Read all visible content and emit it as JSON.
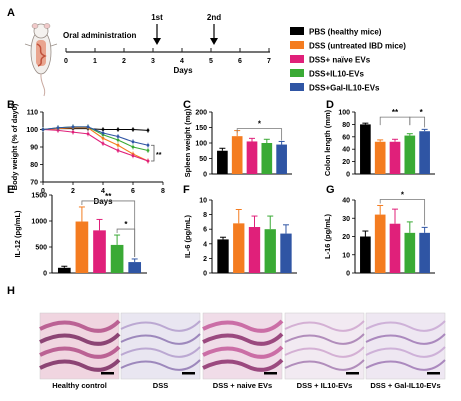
{
  "colors": {
    "pbs": "#000000",
    "dss": "#f47c20",
    "naive": "#e0207a",
    "il10": "#3aaa35",
    "gal": "#2f55a4"
  },
  "panelA": {
    "letter": "A",
    "oral": "Oral administration",
    "first": "1st",
    "second": "2nd",
    "days_label": "Days",
    "ticks": [
      "0",
      "1",
      "2",
      "3",
      "4",
      "5",
      "6",
      "7"
    ]
  },
  "legend": [
    {
      "key": "pbs",
      "label": "PBS (healthy mice)"
    },
    {
      "key": "dss",
      "label": "DSS (untreated IBD mice)"
    },
    {
      "key": "naive",
      "label": "DSS+ naïve EVs"
    },
    {
      "key": "il10",
      "label": "DSS+IL10-EVs"
    },
    {
      "key": "gal",
      "label": "DSS+Gal-IL10-EVs"
    }
  ],
  "panel_letters": {
    "B": "B",
    "C": "C",
    "D": "D",
    "E": "E",
    "F": "F",
    "G": "G",
    "H": "H"
  },
  "chart_data": [
    {
      "id": "B",
      "type": "line",
      "xlabel": "Days",
      "ylabel": "Body weight (% of day0)",
      "xlim": [
        0,
        8
      ],
      "ylim": [
        70,
        110
      ],
      "xticks": [
        "0",
        "2",
        "4",
        "6",
        "8"
      ],
      "yticks": [
        "70",
        "80",
        "90",
        "100",
        "110"
      ],
      "x": [
        0,
        1,
        2,
        3,
        4,
        5,
        6,
        7
      ],
      "series": [
        {
          "key": "pbs",
          "values": [
            100,
            100.5,
            100.5,
            100.5,
            100,
            100,
            100,
            99.5
          ]
        },
        {
          "key": "dss",
          "values": [
            100,
            100.5,
            101,
            101,
            95,
            91,
            86,
            82
          ]
        },
        {
          "key": "naive",
          "values": [
            100,
            99.5,
            98.5,
            97.5,
            92,
            88,
            85,
            82
          ]
        },
        {
          "key": "il10",
          "values": [
            100,
            101,
            101.5,
            101.5,
            97,
            94,
            90,
            88
          ]
        },
        {
          "key": "gal",
          "values": [
            100,
            101,
            101.5,
            101.5,
            98,
            96,
            93,
            91
          ]
        }
      ],
      "annotation": "**"
    },
    {
      "id": "C",
      "type": "bar",
      "ylabel": "Spleen weight (mg)",
      "ylim": [
        0,
        200
      ],
      "yticks": [
        "0",
        "50",
        "100",
        "150",
        "200"
      ],
      "categories": [
        "pbs",
        "dss",
        "naive",
        "il10",
        "gal"
      ],
      "values": [
        75,
        122,
        105,
        100,
        95
      ],
      "errors": [
        8,
        18,
        10,
        12,
        10
      ],
      "annotation": "*"
    },
    {
      "id": "D",
      "type": "bar",
      "ylabel": "Colon length (mm)",
      "ylim": [
        0,
        100
      ],
      "yticks": [
        "0",
        "20",
        "40",
        "60",
        "80",
        "100"
      ],
      "categories": [
        "pbs",
        "dss",
        "naive",
        "il10",
        "gal"
      ],
      "values": [
        80,
        52,
        52,
        62,
        69
      ],
      "errors": [
        2,
        3,
        4,
        3,
        3
      ],
      "annotation": [
        "**",
        "*"
      ]
    },
    {
      "id": "E",
      "type": "bar",
      "ylabel": "IL-12 (pg/mL)",
      "ylim": [
        0,
        1500
      ],
      "yticks": [
        "0",
        "500",
        "1000",
        "1500"
      ],
      "categories": [
        "pbs",
        "dss",
        "naive",
        "il10",
        "gal"
      ],
      "values": [
        100,
        990,
        820,
        540,
        210
      ],
      "errors": [
        30,
        280,
        210,
        190,
        60
      ],
      "annotation": [
        "**",
        "*"
      ]
    },
    {
      "id": "F",
      "type": "bar",
      "ylabel": "IL-6  (pg/mL)",
      "ylim": [
        0,
        10
      ],
      "yticks": [
        "0",
        "2",
        "4",
        "6",
        "8",
        "10"
      ],
      "categories": [
        "pbs",
        "dss",
        "naive",
        "il10",
        "gal"
      ],
      "values": [
        4.6,
        6.8,
        6.3,
        6.0,
        5.4
      ],
      "errors": [
        0.3,
        1.9,
        1.5,
        1.8,
        1.2
      ]
    },
    {
      "id": "G",
      "type": "bar",
      "ylabel": "L-16 (pg/mL)",
      "ylim": [
        0,
        40
      ],
      "yticks": [
        "0",
        "10",
        "20",
        "30",
        "40"
      ],
      "categories": [
        "pbs",
        "dss",
        "naive",
        "il10",
        "gal"
      ],
      "values": [
        20,
        32,
        27,
        22,
        22
      ],
      "errors": [
        3,
        5,
        8,
        6,
        3
      ],
      "annotation": "*"
    }
  ],
  "histology": [
    {
      "label": "Healthy control"
    },
    {
      "label": "DSS"
    },
    {
      "label": "DSS + naive EVs"
    },
    {
      "label": "DSS + IL10-EVs"
    },
    {
      "label": "DSS + Gal-IL10-EVs"
    }
  ]
}
